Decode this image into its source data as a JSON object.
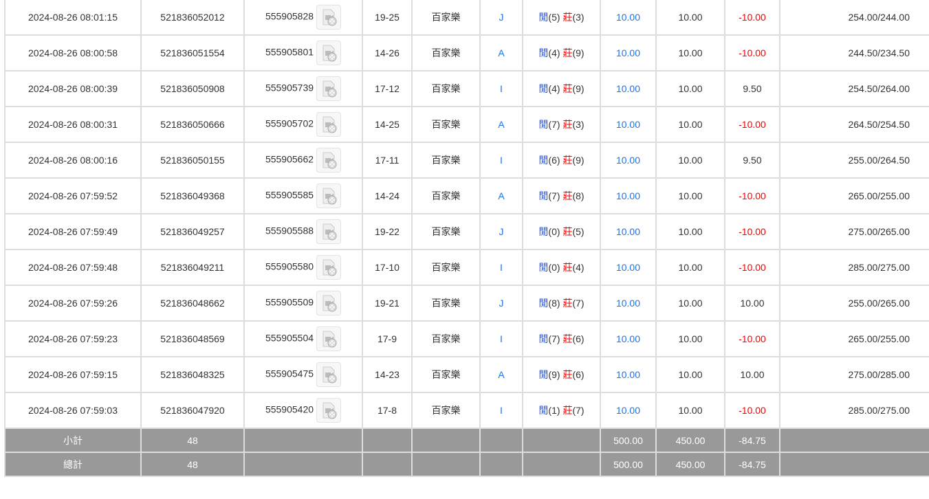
{
  "rows": [
    {
      "time": "2024-08-26 08:01:15",
      "bet_id": "521836052012",
      "round": "555905828",
      "table": "19-25",
      "game": "百家樂",
      "result": "J",
      "player": "閒",
      "pv": "(5)",
      "banker": "莊",
      "bv": "(3)",
      "bet": "10.00",
      "valid": "10.00",
      "win": "-10.00",
      "win_neg": true,
      "balance": "254.00/244.00"
    },
    {
      "time": "2024-08-26 08:00:58",
      "bet_id": "521836051554",
      "round": "555905801",
      "table": "14-26",
      "game": "百家樂",
      "result": "A",
      "player": "閒",
      "pv": "(4)",
      "banker": "莊",
      "bv": "(9)",
      "bet": "10.00",
      "valid": "10.00",
      "win": "-10.00",
      "win_neg": true,
      "balance": "244.50/234.50"
    },
    {
      "time": "2024-08-26 08:00:39",
      "bet_id": "521836050908",
      "round": "555905739",
      "table": "17-12",
      "game": "百家樂",
      "result": "I",
      "player": "閒",
      "pv": "(4)",
      "banker": "莊",
      "bv": "(9)",
      "bet": "10.00",
      "valid": "10.00",
      "win": "9.50",
      "win_neg": false,
      "balance": "254.50/264.00"
    },
    {
      "time": "2024-08-26 08:00:31",
      "bet_id": "521836050666",
      "round": "555905702",
      "table": "14-25",
      "game": "百家樂",
      "result": "A",
      "player": "閒",
      "pv": "(7)",
      "banker": "莊",
      "bv": "(3)",
      "bet": "10.00",
      "valid": "10.00",
      "win": "-10.00",
      "win_neg": true,
      "balance": "264.50/254.50"
    },
    {
      "time": "2024-08-26 08:00:16",
      "bet_id": "521836050155",
      "round": "555905662",
      "table": "17-11",
      "game": "百家樂",
      "result": "I",
      "player": "閒",
      "pv": "(6)",
      "banker": "莊",
      "bv": "(9)",
      "bet": "10.00",
      "valid": "10.00",
      "win": "9.50",
      "win_neg": false,
      "balance": "255.00/264.50"
    },
    {
      "time": "2024-08-26 07:59:52",
      "bet_id": "521836049368",
      "round": "555905585",
      "table": "14-24",
      "game": "百家樂",
      "result": "A",
      "player": "閒",
      "pv": "(7)",
      "banker": "莊",
      "bv": "(8)",
      "bet": "10.00",
      "valid": "10.00",
      "win": "-10.00",
      "win_neg": true,
      "balance": "265.00/255.00"
    },
    {
      "time": "2024-08-26 07:59:49",
      "bet_id": "521836049257",
      "round": "555905588",
      "table": "19-22",
      "game": "百家樂",
      "result": "J",
      "player": "閒",
      "pv": "(0)",
      "banker": "莊",
      "bv": "(5)",
      "bet": "10.00",
      "valid": "10.00",
      "win": "-10.00",
      "win_neg": true,
      "balance": "275.00/265.00"
    },
    {
      "time": "2024-08-26 07:59:48",
      "bet_id": "521836049211",
      "round": "555905580",
      "table": "17-10",
      "game": "百家樂",
      "result": "I",
      "player": "閒",
      "pv": "(0)",
      "banker": "莊",
      "bv": "(4)",
      "bet": "10.00",
      "valid": "10.00",
      "win": "-10.00",
      "win_neg": true,
      "balance": "285.00/275.00"
    },
    {
      "time": "2024-08-26 07:59:26",
      "bet_id": "521836048662",
      "round": "555905509",
      "table": "19-21",
      "game": "百家樂",
      "result": "J",
      "player": "閒",
      "pv": "(8)",
      "banker": "莊",
      "bv": "(7)",
      "bet": "10.00",
      "valid": "10.00",
      "win": "10.00",
      "win_neg": false,
      "balance": "255.00/265.00"
    },
    {
      "time": "2024-08-26 07:59:23",
      "bet_id": "521836048569",
      "round": "555905504",
      "table": "17-9",
      "game": "百家樂",
      "result": "I",
      "player": "閒",
      "pv": "(7)",
      "banker": "莊",
      "bv": "(6)",
      "bet": "10.00",
      "valid": "10.00",
      "win": "-10.00",
      "win_neg": true,
      "balance": "265.00/255.00"
    },
    {
      "time": "2024-08-26 07:59:15",
      "bet_id": "521836048325",
      "round": "555905475",
      "table": "14-23",
      "game": "百家樂",
      "result": "A",
      "player": "閒",
      "pv": "(9)",
      "banker": "莊",
      "bv": "(6)",
      "bet": "10.00",
      "valid": "10.00",
      "win": "10.00",
      "win_neg": false,
      "balance": "275.00/285.00"
    },
    {
      "time": "2024-08-26 07:59:03",
      "bet_id": "521836047920",
      "round": "555905420",
      "table": "17-8",
      "game": "百家樂",
      "result": "I",
      "player": "閒",
      "pv": "(1)",
      "banker": "莊",
      "bv": "(7)",
      "bet": "10.00",
      "valid": "10.00",
      "win": "-10.00",
      "win_neg": true,
      "balance": "285.00/275.00"
    }
  ],
  "summary": [
    {
      "label": "小計",
      "count": "48",
      "bet": "500.00",
      "valid": "450.00",
      "win": "-84.75"
    },
    {
      "label": "總計",
      "count": "48",
      "bet": "500.00",
      "valid": "450.00",
      "win": "-84.75"
    }
  ],
  "icons": {
    "replay": "video-file-icon"
  },
  "colors": {
    "blue": "#1a73e8",
    "red": "#ee0000",
    "summary_bg": "#999999"
  }
}
